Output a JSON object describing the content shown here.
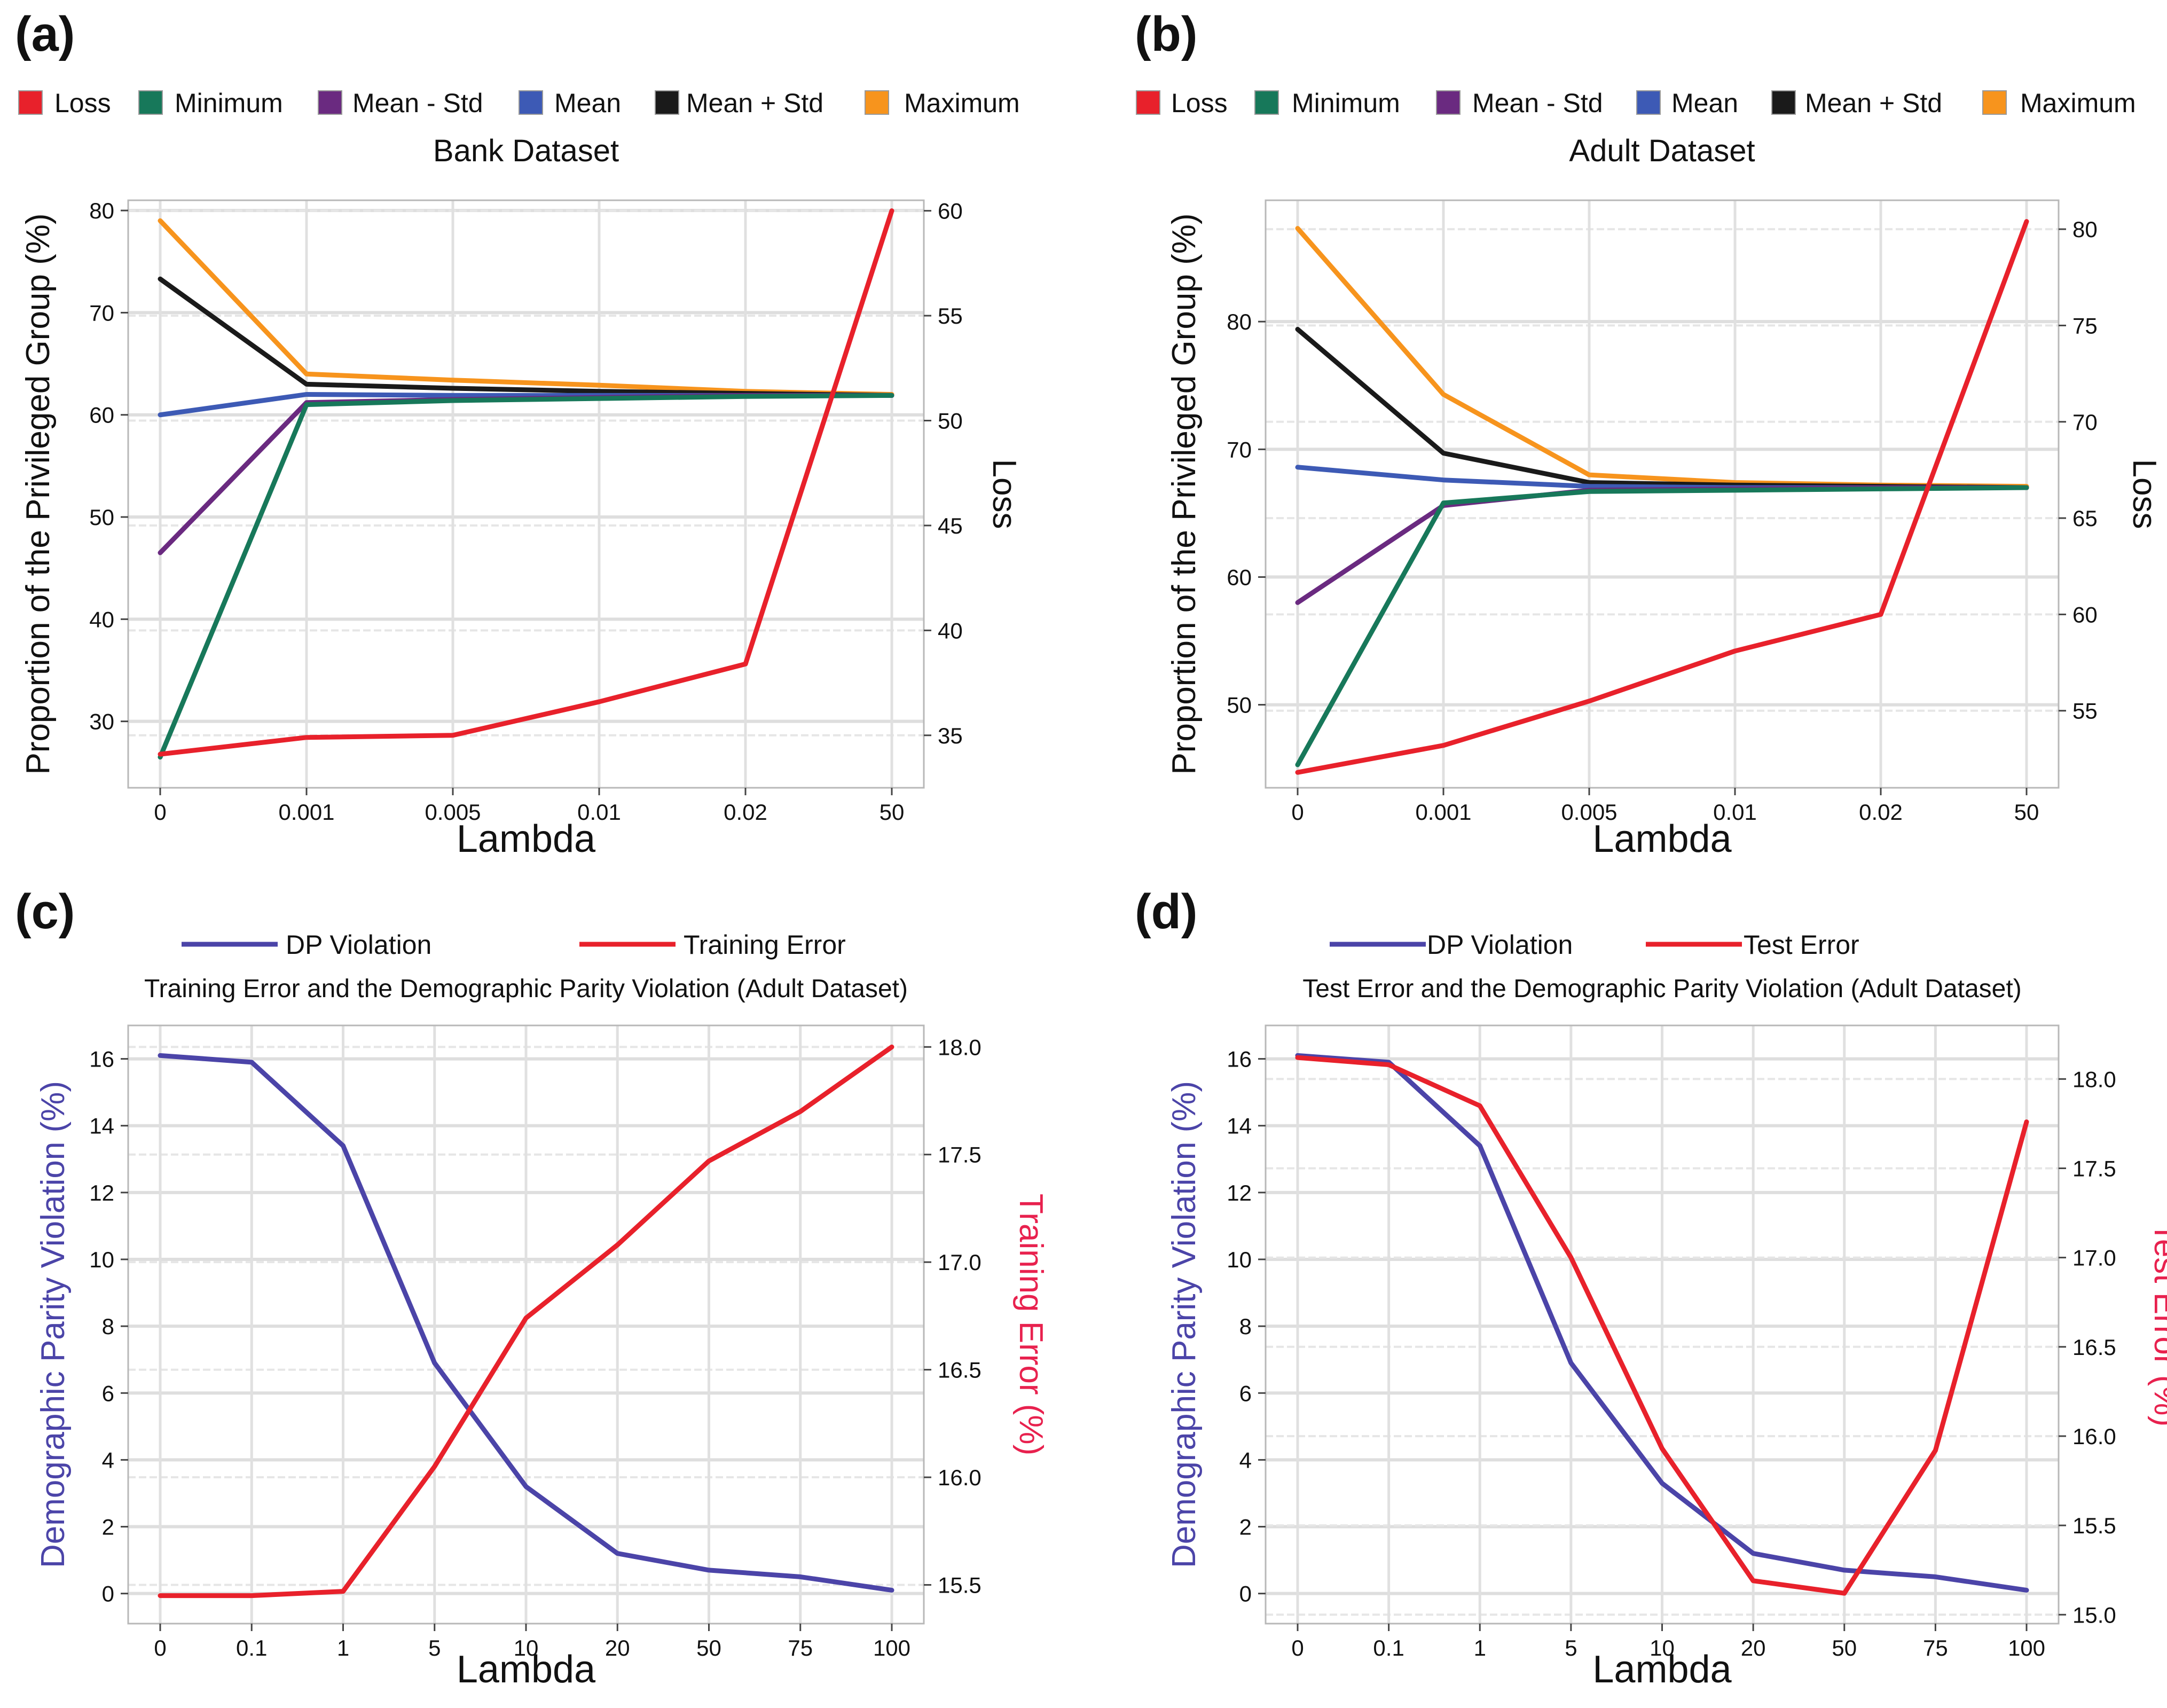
{
  "chart_data": [
    {
      "panel": "(a)",
      "type": "line",
      "title": "Bank Dataset",
      "xlabel": "Lambda",
      "ylabel": "Proportion of the Privileged Group (%)",
      "y2label": "Loss",
      "categories": [
        "0",
        "0.001",
        "0.005",
        "0.01",
        "0.02",
        "50"
      ],
      "ylim": [
        23.5,
        81
      ],
      "yticks": [
        30,
        40,
        50,
        60,
        70,
        80
      ],
      "y2lim": [
        32.5,
        60.5
      ],
      "y2ticks": [
        35,
        40,
        45,
        50,
        55,
        60
      ],
      "legend_position": "top",
      "grid": true,
      "series": [
        {
          "name": "Loss",
          "axis": "right",
          "color": "#e8212b",
          "values": [
            34.1,
            34.9,
            35.0,
            36.6,
            38.4,
            60.0
          ]
        },
        {
          "name": "Minimum",
          "axis": "left",
          "color": "#17785a",
          "values": [
            26.5,
            61.0,
            61.4,
            61.6,
            61.8,
            61.9
          ]
        },
        {
          "name": "Mean - Std",
          "axis": "left",
          "color": "#6a2a80",
          "values": [
            46.5,
            61.2,
            61.5,
            61.7,
            61.9,
            61.9
          ]
        },
        {
          "name": "Mean",
          "axis": "left",
          "color": "#3d5ab5",
          "values": [
            60.0,
            62.0,
            61.9,
            61.9,
            61.9,
            61.9
          ]
        },
        {
          "name": "Mean + Std",
          "axis": "left",
          "color": "#1a1a1a",
          "values": [
            73.3,
            63.0,
            62.6,
            62.3,
            62.1,
            61.9
          ]
        },
        {
          "name": "Maximum",
          "axis": "left",
          "color": "#f7941d",
          "values": [
            79.0,
            64.0,
            63.4,
            62.9,
            62.3,
            62.0
          ]
        }
      ]
    },
    {
      "panel": "(b)",
      "type": "line",
      "title": "Adult Dataset",
      "xlabel": "Lambda",
      "ylabel": "Proportion of the Privileged Group (%)",
      "y2label": "Loss",
      "categories": [
        "0",
        "0.001",
        "0.005",
        "0.01",
        "0.02",
        "50"
      ],
      "ylim": [
        43.5,
        89.5
      ],
      "yticks": [
        50,
        60,
        70,
        80
      ],
      "y2lim": [
        51,
        81.5
      ],
      "y2ticks": [
        55,
        60,
        65,
        70,
        75,
        80
      ],
      "legend_position": "top",
      "grid": true,
      "series": [
        {
          "name": "Loss",
          "axis": "right",
          "color": "#e8212b",
          "values": [
            51.8,
            53.2,
            55.5,
            58.1,
            60.0,
            80.4
          ]
        },
        {
          "name": "Minimum",
          "axis": "left",
          "color": "#17785a",
          "values": [
            45.3,
            65.8,
            66.7,
            66.8,
            66.9,
            67.0
          ]
        },
        {
          "name": "Mean - Std",
          "axis": "left",
          "color": "#6a2a80",
          "values": [
            58.0,
            65.6,
            66.8,
            66.9,
            67.0,
            67.0
          ]
        },
        {
          "name": "Mean",
          "axis": "left",
          "color": "#3d5ab5",
          "values": [
            68.6,
            67.6,
            67.1,
            67.0,
            67.0,
            67.0
          ]
        },
        {
          "name": "Mean + Std",
          "axis": "left",
          "color": "#1a1a1a",
          "values": [
            79.4,
            69.7,
            67.4,
            67.2,
            67.1,
            67.0
          ]
        },
        {
          "name": "Maximum",
          "axis": "left",
          "color": "#f7941d",
          "values": [
            87.3,
            74.3,
            68.0,
            67.4,
            67.2,
            67.1
          ]
        }
      ]
    },
    {
      "panel": "(c)",
      "type": "line",
      "title": "Training Error and the Demographic Parity Violation (Adult Dataset)",
      "xlabel": "Lambda",
      "ylabel": "Demographic Parity Violation (%)",
      "y2label": "Training Error (%)",
      "categories": [
        "0",
        "0.1",
        "1",
        "5",
        "10",
        "20",
        "50",
        "75",
        "100"
      ],
      "ylim": [
        -0.9,
        17.0
      ],
      "yticks": [
        0,
        2,
        4,
        6,
        8,
        10,
        12,
        14,
        16
      ],
      "y2lim": [
        15.32,
        18.1
      ],
      "y2ticks": [
        15.5,
        16.0,
        16.5,
        17.0,
        17.5,
        18.0
      ],
      "legend_position": "top",
      "grid": true,
      "series": [
        {
          "name": "DP Violation",
          "axis": "left",
          "color": "#4b44a8",
          "values": [
            16.1,
            15.9,
            13.4,
            6.9,
            3.2,
            1.2,
            0.7,
            0.5,
            0.1
          ]
        },
        {
          "name": "Training Error",
          "axis": "right",
          "color": "#e8212b",
          "values": [
            15.45,
            15.45,
            15.47,
            16.05,
            16.74,
            17.08,
            17.47,
            17.7,
            18.0
          ]
        }
      ]
    },
    {
      "panel": "(d)",
      "type": "line",
      "title": "Test Error and the Demographic Parity Violation (Adult Dataset)",
      "xlabel": "Lambda",
      "ylabel": "Demographic Parity Violation (%)",
      "y2label": "Test Error (%)",
      "categories": [
        "0",
        "0.1",
        "1",
        "5",
        "10",
        "20",
        "50",
        "75",
        "100"
      ],
      "ylim": [
        -0.9,
        17.0
      ],
      "yticks": [
        0,
        2,
        4,
        6,
        8,
        10,
        12,
        14,
        16
      ],
      "y2lim": [
        14.95,
        18.3
      ],
      "y2ticks": [
        15.0,
        15.5,
        16.0,
        16.5,
        17.0,
        17.5,
        18.0
      ],
      "legend_position": "top",
      "grid": true,
      "series": [
        {
          "name": "DP Violation",
          "axis": "left",
          "color": "#4b44a8",
          "values": [
            16.1,
            15.9,
            13.4,
            6.9,
            3.3,
            1.2,
            0.7,
            0.5,
            0.1
          ]
        },
        {
          "name": "Test Error",
          "axis": "right",
          "color": "#e8212b",
          "values": [
            18.12,
            18.08,
            17.85,
            17.0,
            15.93,
            15.19,
            15.12,
            15.92,
            17.76
          ]
        }
      ]
    }
  ]
}
